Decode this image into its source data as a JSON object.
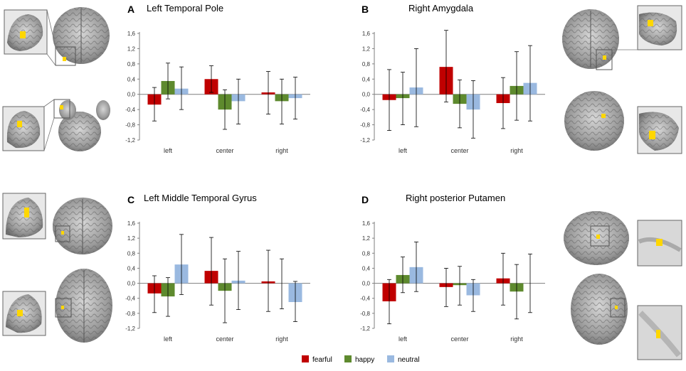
{
  "figure": {
    "colors": {
      "fearful": "#c00000",
      "happy": "#5e8a2e",
      "neutral": "#9ab9e0",
      "axis": "#7f7f7f",
      "error_bar": "#000000",
      "highlight": "#ffd700"
    },
    "legend": [
      {
        "key": "fearful",
        "label": "fearful"
      },
      {
        "key": "happy",
        "label": "happy"
      },
      {
        "key": "neutral",
        "label": "neutral"
      }
    ]
  },
  "chart_data": [
    {
      "type": "bar",
      "panel": "A",
      "title": "Left Temporal Pole",
      "categories": [
        "left",
        "center",
        "right"
      ],
      "ylim": [
        -1.2,
        1.6
      ],
      "yticks": [
        "1,6",
        "1,2",
        "0,8",
        "0,4",
        "0,0",
        "-0,4",
        "-0,8",
        "-1,2"
      ],
      "series": [
        {
          "name": "fearful",
          "values": [
            -0.27,
            0.4,
            0.05
          ],
          "err_high": [
            0.18,
            0.75,
            0.6
          ],
          "err_low": [
            -0.7,
            0.05,
            -0.52
          ]
        },
        {
          "name": "happy",
          "values": [
            0.35,
            -0.4,
            -0.18
          ],
          "err_high": [
            0.82,
            0.12,
            0.4
          ],
          "err_low": [
            -0.12,
            -0.92,
            -0.78
          ]
        },
        {
          "name": "neutral",
          "values": [
            0.15,
            -0.18,
            -0.1
          ],
          "err_high": [
            0.72,
            0.4,
            0.45
          ],
          "err_low": [
            -0.4,
            -0.78,
            -0.65
          ]
        }
      ]
    },
    {
      "type": "bar",
      "panel": "B",
      "title": "Right Amygdala",
      "categories": [
        "left",
        "center",
        "right"
      ],
      "ylim": [
        -1.2,
        1.6
      ],
      "yticks": [
        "1,6",
        "1,2",
        "0,8",
        "0,4",
        "0,0",
        "-0,4",
        "-0,8",
        "-1,2"
      ],
      "series": [
        {
          "name": "fearful",
          "values": [
            -0.15,
            0.72,
            -0.23
          ],
          "err_high": [
            0.65,
            1.68,
            0.44
          ],
          "err_low": [
            -0.95,
            -0.2,
            -0.9
          ]
        },
        {
          "name": "happy",
          "values": [
            -0.1,
            -0.25,
            0.22
          ],
          "err_high": [
            0.58,
            0.38,
            1.12
          ],
          "err_low": [
            -0.8,
            -0.88,
            -0.68
          ]
        },
        {
          "name": "neutral",
          "values": [
            0.18,
            -0.4,
            0.3
          ],
          "err_high": [
            1.2,
            0.36,
            1.28
          ],
          "err_low": [
            -0.85,
            -1.15,
            -0.7
          ]
        }
      ]
    },
    {
      "type": "bar",
      "panel": "C",
      "title": "Left Middle Temporal Gyrus",
      "categories": [
        "left",
        "center",
        "right"
      ],
      "ylim": [
        -1.2,
        1.6
      ],
      "yticks": [
        "1,6",
        "1,2",
        "0,8",
        "0,4",
        "0,0",
        "-0,4",
        "-0,8",
        "-1,2"
      ],
      "series": [
        {
          "name": "fearful",
          "values": [
            -0.27,
            0.33,
            0.05
          ],
          "err_high": [
            0.2,
            1.22,
            0.88
          ],
          "err_low": [
            -0.78,
            -0.58,
            -0.75
          ]
        },
        {
          "name": "happy",
          "values": [
            -0.35,
            -0.2,
            0.0
          ],
          "err_high": [
            0.15,
            0.65,
            0.65
          ],
          "err_low": [
            -0.88,
            -1.05,
            -0.68
          ]
        },
        {
          "name": "neutral",
          "values": [
            0.5,
            0.07,
            -0.5
          ],
          "err_high": [
            1.3,
            0.85,
            0.05
          ],
          "err_low": [
            -0.3,
            -0.7,
            -1.02
          ]
        }
      ]
    },
    {
      "type": "bar",
      "panel": "D",
      "title": "Right posterior Putamen",
      "categories": [
        "left",
        "center",
        "right"
      ],
      "ylim": [
        -1.2,
        1.6
      ],
      "yticks": [
        "1,6",
        "1,2",
        "0,8",
        "0,4",
        "0,0",
        "-0,4",
        "-0,8",
        "-1,2"
      ],
      "series": [
        {
          "name": "fearful",
          "values": [
            -0.48,
            -0.1,
            0.13
          ],
          "err_high": [
            0.1,
            0.4,
            0.8
          ],
          "err_low": [
            -1.08,
            -0.62,
            -0.58
          ]
        },
        {
          "name": "happy",
          "values": [
            0.22,
            -0.05,
            -0.22
          ],
          "err_high": [
            0.7,
            0.45,
            0.5
          ],
          "err_low": [
            -0.25,
            -0.58,
            -0.95
          ]
        },
        {
          "name": "neutral",
          "values": [
            0.43,
            -0.32,
            0.0
          ],
          "err_high": [
            1.1,
            0.1,
            0.78
          ],
          "err_low": [
            -0.22,
            -0.75,
            -0.78
          ]
        }
      ]
    }
  ]
}
